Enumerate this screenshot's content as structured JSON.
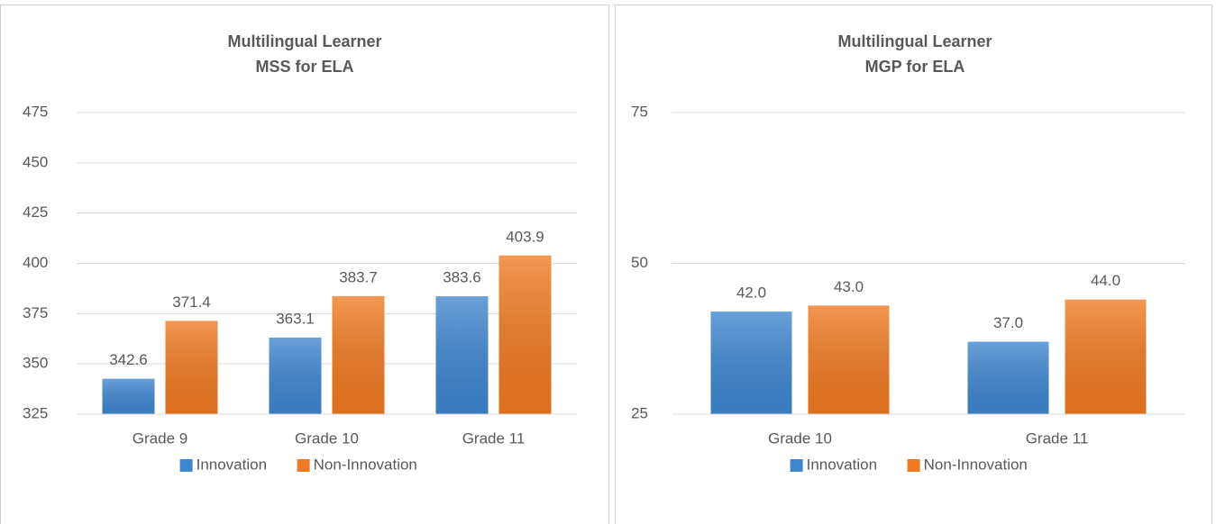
{
  "chart_data": [
    {
      "type": "bar",
      "title": [
        "Multilingual Learner",
        "MSS for ELA"
      ],
      "categories": [
        "Grade 9",
        "Grade 10",
        "Grade 11"
      ],
      "series": [
        {
          "name": "Innovation",
          "color": "#3f86cf",
          "values": [
            342.6,
            363.1,
            383.6
          ]
        },
        {
          "name": "Non-Innovation",
          "color": "#f07a22",
          "values": [
            371.4,
            383.7,
            403.9
          ]
        }
      ],
      "ylim": [
        325,
        475
      ],
      "yticks": [
        325,
        350,
        375,
        400,
        425,
        450,
        475
      ],
      "grid": true,
      "legend": "bottom"
    },
    {
      "type": "bar",
      "title": [
        "Multilingual Learner",
        "MGP for ELA"
      ],
      "categories": [
        "Grade 10",
        "Grade 11"
      ],
      "series": [
        {
          "name": "Innovation",
          "color": "#3f86cf",
          "values": [
            42,
            37
          ],
          "value_labels": [
            "42.0",
            "37.0"
          ]
        },
        {
          "name": "Non-Innovation",
          "color": "#f07a22",
          "values": [
            43,
            44
          ],
          "value_labels": [
            "43.0",
            "44.0"
          ]
        }
      ],
      "ylim": [
        25,
        75
      ],
      "yticks": [
        25,
        50,
        75
      ],
      "grid": true,
      "legend": "bottom"
    }
  ]
}
